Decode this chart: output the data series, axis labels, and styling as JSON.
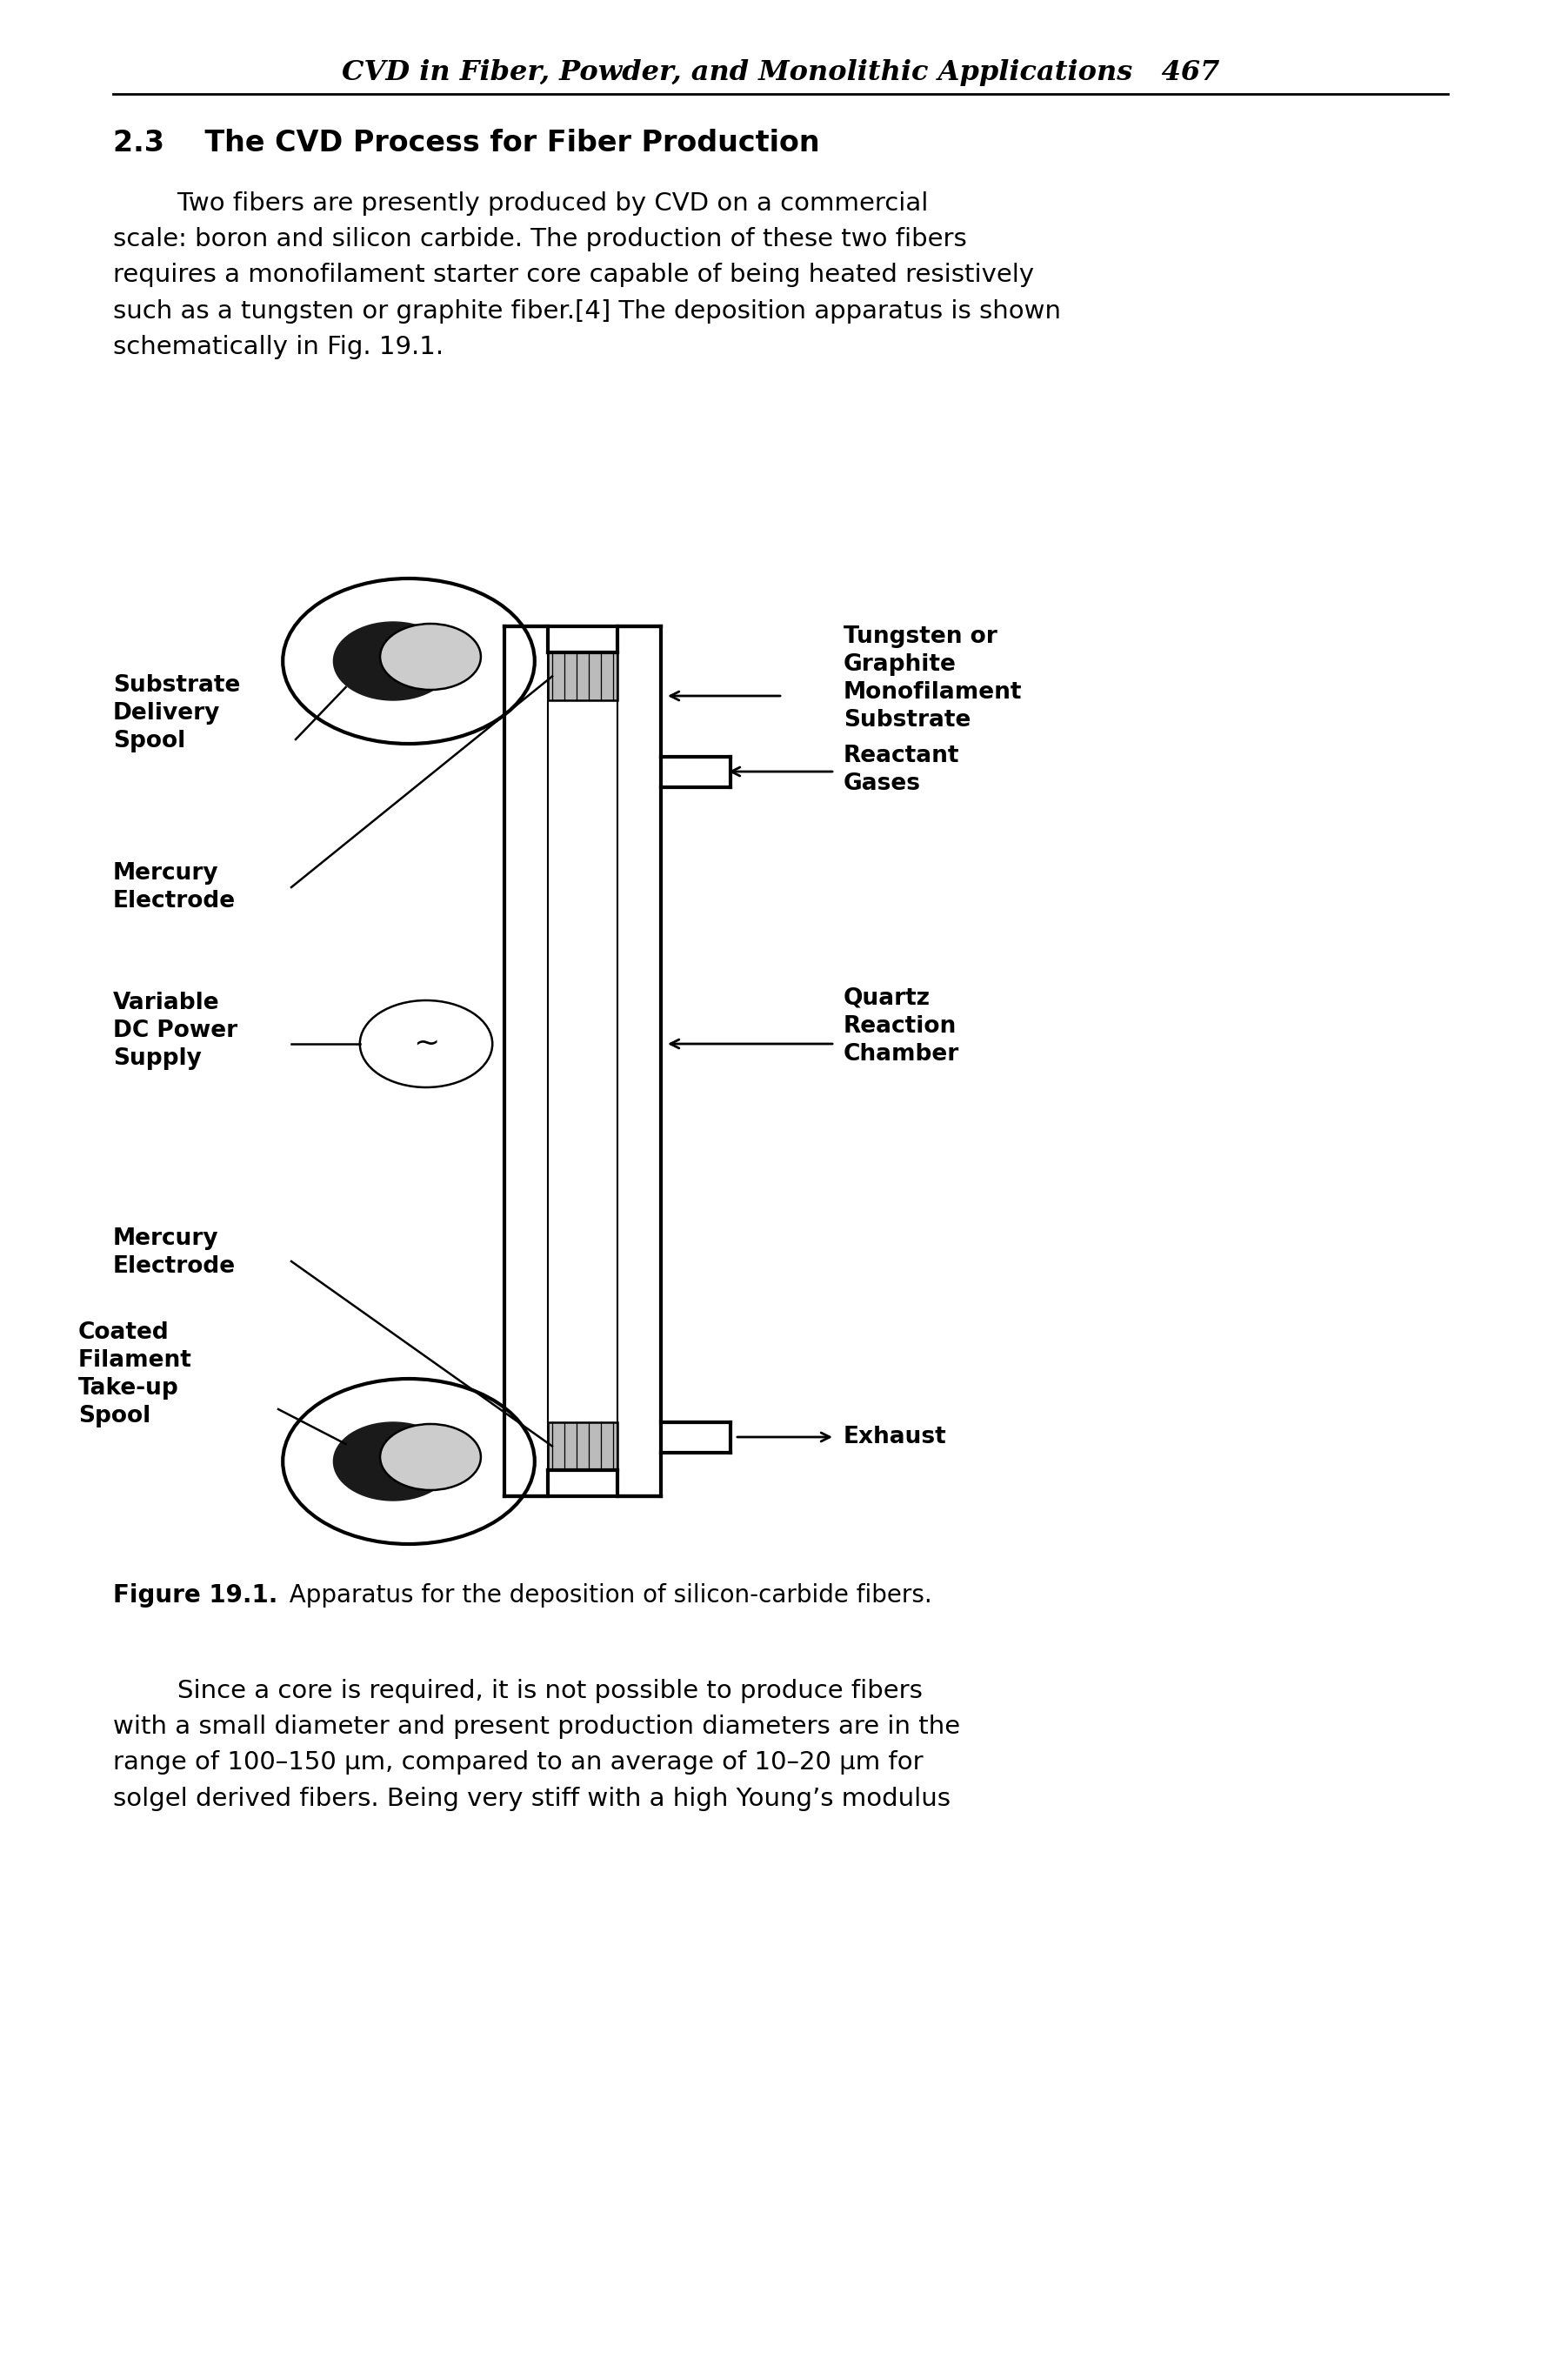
{
  "page_title": "CVD in Fiber, Powder, and Monolithic Applications   467",
  "section_title": "2.3    The CVD Process for Fiber Production",
  "body_text_1": "        Two fibers are presently produced by CVD on a commercial\nscale: boron and silicon carbide. The production of these two fibers\nrequires a monofilament starter core capable of being heated resistively\nsuch as a tungsten or graphite fiber.[4] The deposition apparatus is shown\nschematically in Fig. 19.1.",
  "figure_caption_bold": "Figure 19.1.",
  "figure_caption_normal": "  Apparatus for the deposition of silicon-carbide fibers.",
  "body_text_2": "        Since a core is required, it is not possible to produce fibers\nwith a small diameter and present production diameters are in the\nrange of 100–150 μm, compared to an average of 10–20 μm for\nsolgel derived fibers. Being very stiff with a high Young’s modulus",
  "bg_color": "#ffffff",
  "text_color": "#000000"
}
